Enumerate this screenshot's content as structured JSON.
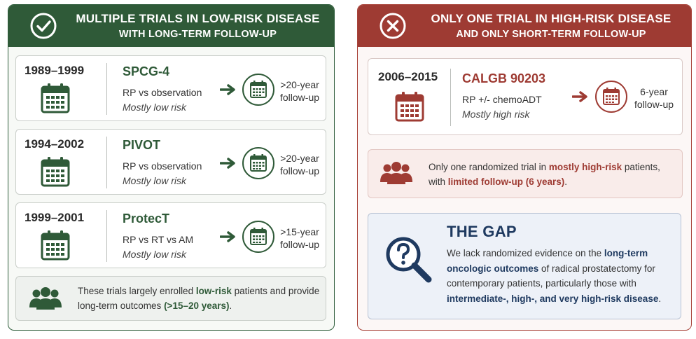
{
  "left_panel": {
    "title_line1": "MULTIPLE TRIALS IN LOW-RISK DISEASE",
    "title_line2": "WITH LONG-TERM FOLLOW-UP",
    "header_icon": "check-circle-icon",
    "trials": [
      {
        "years": "1989–1999",
        "name": "SPCG-4",
        "comparison": "RP vs observation",
        "risk": "Mostly low risk",
        "followup_line1": ">20-year",
        "followup_line2": "follow-up"
      },
      {
        "years": "1994–2002",
        "name": "PIVOT",
        "comparison": "RP vs observation",
        "risk": "Mostly low risk",
        "followup_line1": ">20-year",
        "followup_line2": "follow-up"
      },
      {
        "years": "1999–2001",
        "name": "ProtecT",
        "comparison": "RP vs RT vs AM",
        "risk": "Mostly low risk",
        "followup_line1": ">15-year",
        "followup_line2": "follow-up"
      }
    ],
    "note": {
      "part1": "These trials largely enrolled ",
      "highlight1": "low-risk",
      "part2": " patients and provide",
      "part3": "long-term outcomes ",
      "highlight2": "(>15–20 years)",
      "part4": "."
    }
  },
  "right_panel": {
    "title_line1": "ONLY ONE TRIAL IN HIGH-RISK DISEASE",
    "title_line2": "AND ONLY SHORT-TERM FOLLOW-UP",
    "header_icon": "x-circle-icon",
    "trial": {
      "years": "2006–2015",
      "name": "CALGB 90203",
      "comparison": "RP +/- chemoADT",
      "risk": "Mostly high risk",
      "followup_line1": "6-year",
      "followup_line2": "follow-up"
    },
    "note": {
      "part1": "Only one randomized trial in ",
      "highlight1": "mostly high-risk",
      "part2": " patients,",
      "part3": "with ",
      "highlight2": "limited follow-up (6 years)",
      "part4": "."
    },
    "gap": {
      "title": "THE GAP",
      "part1": "We lack randomized evidence on the ",
      "highlight1": "long-term oncologic outcomes",
      "part2": " of radical prostatectomy for contemporary patients, particularly those with ",
      "highlight2": "intermediate-, high-, and very high-risk disease",
      "part3": "."
    }
  },
  "colors": {
    "green": "#2f5a38",
    "red": "#9e3b33",
    "navy": "#1f3a60"
  }
}
